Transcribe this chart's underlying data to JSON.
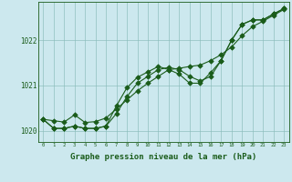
{
  "xlabel": "Graphe pression niveau de la mer (hPa)",
  "background_color": "#cce8ee",
  "line_color": "#1a5c1a",
  "grid_color": "#8abcba",
  "hours": [
    0,
    1,
    2,
    3,
    4,
    5,
    6,
    7,
    8,
    9,
    10,
    11,
    12,
    13,
    14,
    15,
    16,
    17,
    18,
    19,
    20,
    21,
    22,
    23
  ],
  "pressure_straight": [
    1020.25,
    1020.22,
    1020.19,
    1020.35,
    1020.18,
    1020.2,
    1020.28,
    1020.48,
    1020.68,
    1020.88,
    1021.05,
    1021.2,
    1021.35,
    1021.38,
    1021.42,
    1021.45,
    1021.55,
    1021.68,
    1021.85,
    1022.1,
    1022.3,
    1022.42,
    1022.55,
    1022.68
  ],
  "pressure_upper": [
    1020.25,
    1020.05,
    1020.05,
    1020.1,
    1020.05,
    1020.05,
    1020.1,
    1020.38,
    1020.75,
    1021.05,
    1021.2,
    1021.35,
    1021.4,
    1021.35,
    1021.2,
    1021.1,
    1021.2,
    1021.55,
    1022.0,
    1022.35,
    1022.45,
    1022.45,
    1022.58,
    1022.7
  ],
  "pressure_lower": [
    1020.25,
    1020.05,
    1020.05,
    1020.1,
    1020.05,
    1020.05,
    1020.1,
    1020.55,
    1020.95,
    1021.18,
    1021.3,
    1021.42,
    1021.35,
    1021.25,
    1021.05,
    1021.05,
    1021.28,
    1021.55,
    1022.0,
    1022.35,
    1022.45,
    1022.45,
    1022.58,
    1022.7
  ],
  "ylim": [
    1019.75,
    1022.85
  ],
  "yticks": [
    1020,
    1021,
    1022
  ],
  "xticks": [
    0,
    1,
    2,
    3,
    4,
    5,
    6,
    7,
    8,
    9,
    10,
    11,
    12,
    13,
    14,
    15,
    16,
    17,
    18,
    19,
    20,
    21,
    22,
    23
  ]
}
